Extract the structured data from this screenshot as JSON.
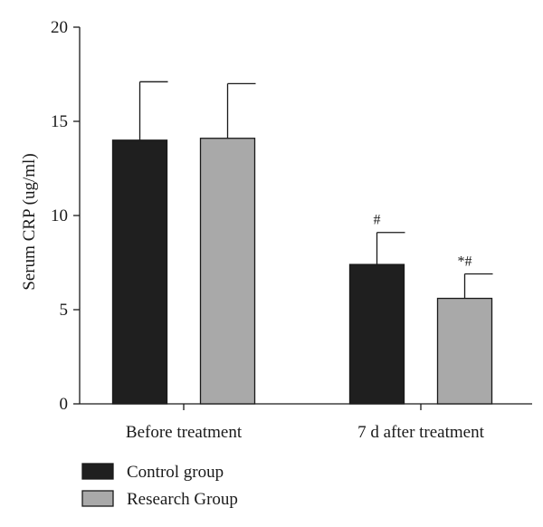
{
  "chart_data": {
    "type": "bar",
    "categories": [
      "Before treatment",
      "7 d after treatment"
    ],
    "series": [
      {
        "name": "Control group",
        "color": "#1f1f1f",
        "values": [
          14.0,
          7.4
        ],
        "errors": [
          3.1,
          1.7
        ],
        "annotations": [
          "",
          "#"
        ]
      },
      {
        "name": "Research Group",
        "color": "#a9a9a9",
        "values": [
          14.1,
          5.6
        ],
        "errors": [
          2.9,
          1.3
        ],
        "annotations": [
          "",
          "*#"
        ]
      }
    ],
    "title": "",
    "xlabel": "",
    "ylabel": "Serum CRP (ug/ml)",
    "ylim": [
      0,
      20
    ],
    "yticks": [
      0,
      5,
      10,
      15,
      20
    ],
    "grid": false,
    "legend_position": "bottom-left"
  }
}
